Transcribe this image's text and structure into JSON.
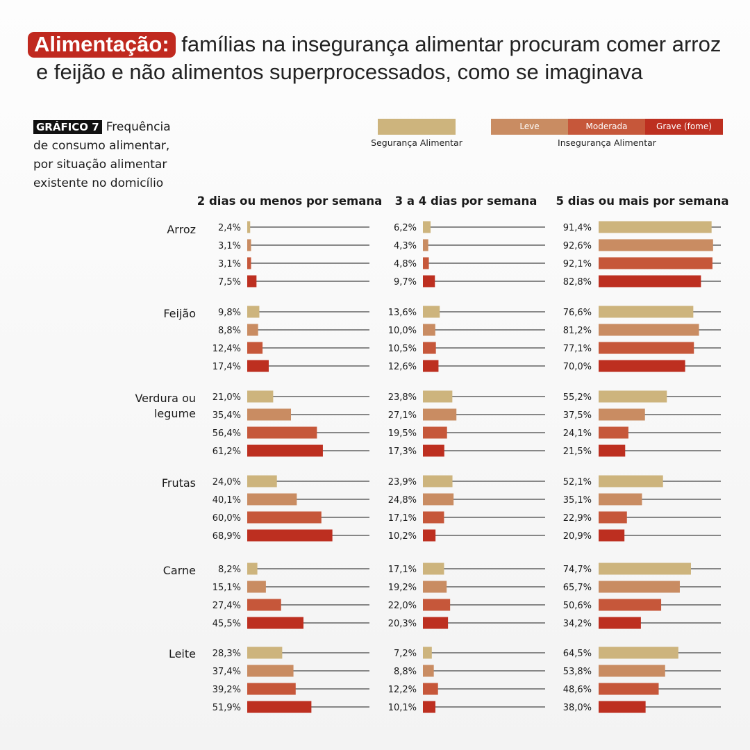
{
  "headline": {
    "lead": "Alimentação:",
    "line1": "famílias na insegurança alimentar procuram comer arroz",
    "line2": "e feijão e não alimentos superprocessados, como se imaginava"
  },
  "subtitle": {
    "tag": "GRÁFICO 7",
    "text": "Frequência de consumo alimentar, por situação alimentar existente no domicílio"
  },
  "legend": {
    "seguranca": "Segurança Alimentar",
    "inseguranca": "Insegurança Alimentar",
    "leve": "Leve",
    "moderada": "Moderada",
    "grave": "Grave (fome)"
  },
  "colors": {
    "seguranca": "#cdb47d",
    "leve": "#c98c62",
    "moderada": "#c6573a",
    "grave": "#bd2f20",
    "accent": "#c0291f"
  },
  "chart_data": {
    "type": "bar",
    "orientation": "horizontal",
    "panels": [
      "2 dias ou menos por semana",
      "3 a 4 dias por semana",
      "5 dias ou mais por semana"
    ],
    "categories": [
      "Arroz",
      "Feijão",
      "Verdura ou legume",
      "Frutas",
      "Carne",
      "Leite"
    ],
    "series": [
      {
        "name": "Segurança Alimentar"
      },
      {
        "name": "Leve"
      },
      {
        "name": "Moderada"
      },
      {
        "name": "Grave (fome)"
      }
    ],
    "unit": "%",
    "values": {
      "Arroz": [
        [
          2.4,
          3.1,
          3.1,
          7.5
        ],
        [
          6.2,
          4.3,
          4.8,
          9.7
        ],
        [
          91.4,
          92.6,
          92.1,
          82.8
        ]
      ],
      "Feijão": [
        [
          9.8,
          8.8,
          12.4,
          17.4
        ],
        [
          13.6,
          10.0,
          10.5,
          12.6
        ],
        [
          76.6,
          81.2,
          77.1,
          70.0
        ]
      ],
      "Verdura ou legume": [
        [
          21.0,
          35.4,
          56.4,
          61.2
        ],
        [
          23.8,
          27.1,
          19.5,
          17.3
        ],
        [
          55.2,
          37.5,
          24.1,
          21.5
        ]
      ],
      "Frutas": [
        [
          24.0,
          40.1,
          60.0,
          68.9
        ],
        [
          23.9,
          24.8,
          17.1,
          10.2
        ],
        [
          52.1,
          35.1,
          22.9,
          20.9
        ]
      ],
      "Carne": [
        [
          8.2,
          15.1,
          27.4,
          45.5
        ],
        [
          17.1,
          19.2,
          22.0,
          20.3
        ],
        [
          74.7,
          65.7,
          50.6,
          34.2
        ]
      ],
      "Leite": [
        [
          28.3,
          37.4,
          39.2,
          51.9
        ],
        [
          7.2,
          8.8,
          12.2,
          10.1
        ],
        [
          64.5,
          53.8,
          48.6,
          38.0
        ]
      ]
    },
    "labels": {
      "Arroz": [
        [
          "2,4%",
          "3,1%",
          "3,1%",
          "7,5%"
        ],
        [
          "6,2%",
          "4,3%",
          "4,8%",
          "9,7%"
        ],
        [
          "91,4%",
          "92,6%",
          "92,1%",
          "82,8%"
        ]
      ],
      "Feijão": [
        [
          "9,8%",
          "8,8%",
          "12,4%",
          "17,4%"
        ],
        [
          "13,6%",
          "10,0%",
          "10,5%",
          "12,6%"
        ],
        [
          "76,6%",
          "81,2%",
          "77,1%",
          "70,0%"
        ]
      ],
      "Verdura ou legume": [
        [
          "21,0%",
          "35,4%",
          "56,4%",
          "61,2%"
        ],
        [
          "23,8%",
          "27,1%",
          "19,5%",
          "17,3%"
        ],
        [
          "55,2%",
          "37,5%",
          "24,1%",
          "21,5%"
        ]
      ],
      "Frutas": [
        [
          "24,0%",
          "40,1%",
          "60,0%",
          "68,9%"
        ],
        [
          "23,9%",
          "24,8%",
          "17,1%",
          "10,2%"
        ],
        [
          "52,1%",
          "35,1%",
          "22,9%",
          "20,9%"
        ]
      ],
      "Carne": [
        [
          "8,2%",
          "15,1%",
          "27,4%",
          "45,5%"
        ],
        [
          "17,1%",
          "19,2%",
          "22,0%",
          "20,3%"
        ],
        [
          "74,7%",
          "65,7%",
          "50,6%",
          "34,2%"
        ]
      ],
      "Leite": [
        [
          "28,3%",
          "37,4%",
          "39,2%",
          "51,9%"
        ],
        [
          "7,2%",
          "8,8%",
          "12,2%",
          "10,1%"
        ],
        [
          "64,5%",
          "53,8%",
          "48,6%",
          "38,0%"
        ]
      ]
    },
    "xlim": [
      0,
      100
    ],
    "grid": false,
    "legend_position": "top-right"
  }
}
